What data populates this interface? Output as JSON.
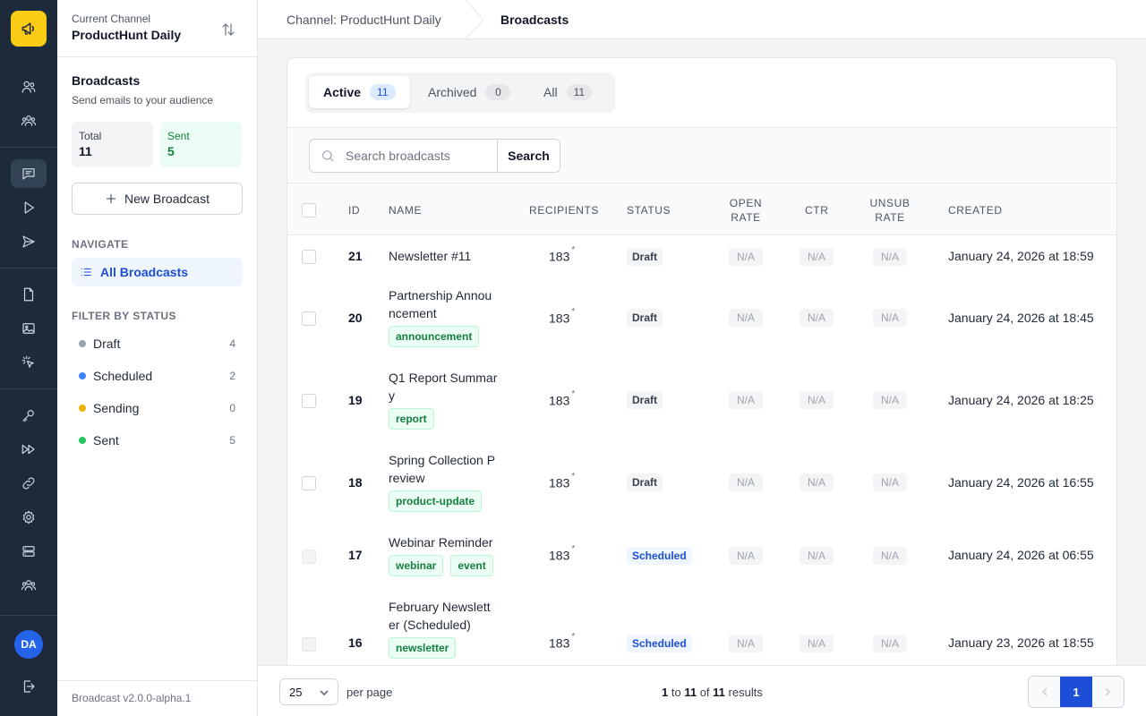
{
  "rail": {
    "avatar_initials": "DA",
    "logo_color": "#facc15",
    "icons": [
      "megaphone-icon",
      "users-icon",
      "user-group-icon",
      "chat-icon",
      "play-icon",
      "send-icon",
      "document-icon",
      "image-icon",
      "cursor-click-icon",
      "key-icon",
      "fast-forward-icon",
      "link-icon",
      "gear-icon",
      "server-icon",
      "team-icon",
      "logout-icon"
    ]
  },
  "sidebar": {
    "current_channel_label": "Current Channel",
    "channel_name": "ProductHunt Daily",
    "title": "Broadcasts",
    "subtitle": "Send emails to your audience",
    "stats": {
      "total_label": "Total",
      "total_value": "11",
      "sent_label": "Sent",
      "sent_value": "5"
    },
    "new_button": "New Broadcast",
    "navigate_heading": "NAVIGATE",
    "nav_all": "All Broadcasts",
    "filter_heading": "FILTER BY STATUS",
    "filters": [
      {
        "label": "Draft",
        "count": "4",
        "color": "#9ca3af"
      },
      {
        "label": "Scheduled",
        "count": "2",
        "color": "#3b82f6"
      },
      {
        "label": "Sending",
        "count": "0",
        "color": "#eab308"
      },
      {
        "label": "Sent",
        "count": "5",
        "color": "#22c55e"
      }
    ],
    "version": "Broadcast v2.0.0-alpha.1"
  },
  "header": {
    "crumb1": "Channel: ProductHunt Daily",
    "crumb2": "Broadcasts"
  },
  "tabs": [
    {
      "label": "Active",
      "count": "11"
    },
    {
      "label": "Archived",
      "count": "0"
    },
    {
      "label": "All",
      "count": "11"
    }
  ],
  "search": {
    "placeholder": "Search broadcasts",
    "value": "",
    "button": "Search"
  },
  "table": {
    "columns": {
      "id": "ID",
      "name": "NAME",
      "recipients": "RECIPIENTS",
      "status": "STATUS",
      "open_rate_1": "OPEN",
      "open_rate_2": "RATE",
      "ctr": "CTR",
      "unsub_1": "UNSUB",
      "unsub_2": "RATE",
      "created": "CREATED"
    },
    "rows": [
      {
        "id": "21",
        "name_1": "Newsletter #11",
        "name_2": "",
        "tags": [],
        "recipients": "183",
        "mark": "*",
        "status": "Draft",
        "open": "N/A",
        "ctr": "N/A",
        "unsub": "N/A",
        "created": "January 24, 2026 at 18:59"
      },
      {
        "id": "20",
        "name_1": "Partnership Annou",
        "name_2": "ncement",
        "tags": [
          "announcement"
        ],
        "recipients": "183",
        "mark": "*",
        "status": "Draft",
        "open": "N/A",
        "ctr": "N/A",
        "unsub": "N/A",
        "created": "January 24, 2026 at 18:45"
      },
      {
        "id": "19",
        "name_1": "Q1 Report Summar",
        "name_2": "y",
        "tags": [
          "report"
        ],
        "recipients": "183",
        "mark": "*",
        "status": "Draft",
        "open": "N/A",
        "ctr": "N/A",
        "unsub": "N/A",
        "created": "January 24, 2026 at 18:25"
      },
      {
        "id": "18",
        "name_1": "Spring Collection P",
        "name_2": "review",
        "tags": [
          "product-update"
        ],
        "recipients": "183",
        "mark": "*",
        "status": "Draft",
        "open": "N/A",
        "ctr": "N/A",
        "unsub": "N/A",
        "created": "January 24, 2026 at 16:55"
      },
      {
        "id": "17",
        "name_1": "Webinar Reminder",
        "name_2": "",
        "tags": [
          "webinar",
          "event"
        ],
        "recipients": "183",
        "mark": "*",
        "status": "Scheduled",
        "open": "N/A",
        "ctr": "N/A",
        "unsub": "N/A",
        "created": "January 24, 2026 at 06:55"
      },
      {
        "id": "16",
        "name_1": "February Newslett",
        "name_2": "er (Scheduled)",
        "tags": [
          "newsletter"
        ],
        "recipients": "183",
        "mark": "*",
        "status": "Scheduled",
        "open": "N/A",
        "ctr": "N/A",
        "unsub": "N/A",
        "created": "January 23, 2026 at 18:55"
      }
    ]
  },
  "footer": {
    "per_page_value": "25",
    "per_page_label": "per page",
    "results_from": "1",
    "results_to_word": "to",
    "results_to": "11",
    "results_of_word": "of",
    "results_total": "11",
    "results_suffix": "results",
    "current_page": "1"
  }
}
